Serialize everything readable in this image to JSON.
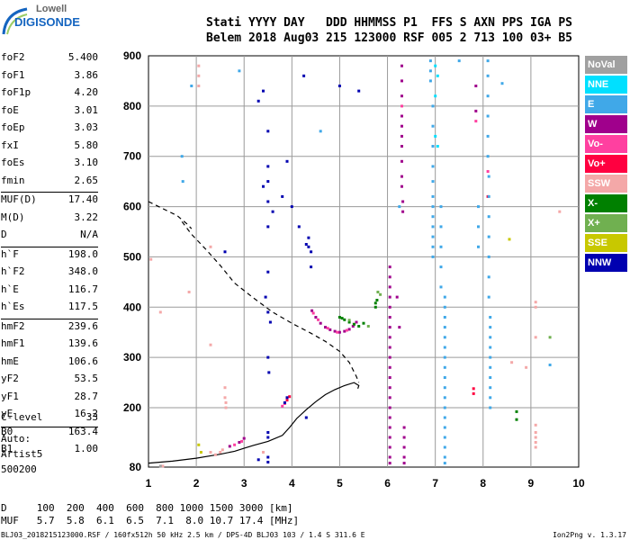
{
  "logo": {
    "top": "Lowell",
    "bottom": "DIGISONDE"
  },
  "header": {
    "line1": "Stati YYYY DAY   DDD HHMMSS P1  FFS S AXN PPS IGA PS",
    "line2": "Belem 2018 Aug03 215 123000 RSF 005 2 713 100 03+ B5"
  },
  "params_top": [
    {
      "label": "foF2",
      "value": "5.400"
    },
    {
      "label": "foF1",
      "value": "3.86"
    },
    {
      "label": "foF1p",
      "value": "4.20"
    },
    {
      "label": "foE",
      "value": "3.01"
    },
    {
      "label": "foEp",
      "value": "3.03"
    },
    {
      "label": "fxI",
      "value": "5.80"
    },
    {
      "label": "foEs",
      "value": "3.10"
    },
    {
      "label": "fmin",
      "value": "2.65"
    }
  ],
  "params_muf": [
    {
      "label": "MUF(D)",
      "value": "17.40"
    },
    {
      "label": "M(D)",
      "value": "3.22"
    },
    {
      "label": "D",
      "value": "N/A"
    }
  ],
  "params_h": [
    {
      "label": "h`F",
      "value": "198.0"
    },
    {
      "label": "h`F2",
      "value": "348.0"
    },
    {
      "label": "h`E",
      "value": "116.7"
    },
    {
      "label": "h`Es",
      "value": "117.5"
    }
  ],
  "params_prof": [
    {
      "label": "hmF2",
      "value": "239.6"
    },
    {
      "label": "hmF1",
      "value": "139.6"
    },
    {
      "label": "hmE",
      "value": "106.6"
    },
    {
      "label": "yF2",
      "value": "53.5"
    },
    {
      "label": "yF1",
      "value": "28.7"
    },
    {
      "label": "yE",
      "value": "16.2"
    },
    {
      "label": "B0",
      "value": "163.4"
    },
    {
      "label": "B1",
      "value": "1.00"
    }
  ],
  "clevel": {
    "label": "C-level",
    "value": "33"
  },
  "artist": {
    "line1": "Auto:",
    "line2": "Artist5",
    "line3": "500200"
  },
  "legend": [
    {
      "label": "NoVal",
      "color": "#a0a0a0"
    },
    {
      "label": "NNE",
      "color": "#00e0ff"
    },
    {
      "label": "E",
      "color": "#40a8e8"
    },
    {
      "label": "W",
      "color": "#a0008c"
    },
    {
      "label": "Vo-",
      "color": "#ff40a0"
    },
    {
      "label": "Vo+",
      "color": "#ff0040"
    },
    {
      "label": "SSW",
      "color": "#f4a8a8"
    },
    {
      "label": "X-",
      "color": "#008000"
    },
    {
      "label": "X+",
      "color": "#70b050"
    },
    {
      "label": "SSE",
      "color": "#c8c800"
    },
    {
      "label": "NNW",
      "color": "#0000b0"
    }
  ],
  "bottom": {
    "d_row": "D     100  200  400  600  800 1000 1500 3000 [km]",
    "muf_row": "MUF   5.7  5.8  6.1  6.5  7.1  8.0 10.7 17.4 [MHz]"
  },
  "footer": "BLJ03_2018215123000.RSF / 160fx512h 50 kHz 2.5 km / DPS-4D BLJ03 103 / 1.4 S 311.6 E",
  "version": "Ion2Png v. 1.3.17",
  "chart_data": {
    "type": "scatter",
    "title": "",
    "xlabel": "",
    "ylabel": "",
    "xlim": [
      1,
      10
    ],
    "ylim": [
      80,
      900
    ],
    "x_ticks": [
      1,
      2,
      3,
      4,
      5,
      6,
      7,
      8,
      9,
      10
    ],
    "y_ticks": [
      80,
      200,
      300,
      400,
      500,
      600,
      700,
      800,
      900
    ],
    "grid": true,
    "legend_position": "right",
    "series": [
      {
        "name": "W",
        "color": "#a0008c",
        "points": [
          [
            4.42,
            393
          ],
          [
            4.5,
            380
          ],
          [
            4.6,
            368
          ],
          [
            4.7,
            360
          ],
          [
            4.8,
            355
          ],
          [
            4.9,
            352
          ],
          [
            5.0,
            350
          ],
          [
            5.1,
            352
          ],
          [
            5.2,
            356
          ],
          [
            5.28,
            362
          ],
          [
            5.35,
            370
          ],
          [
            6.3,
            880
          ],
          [
            6.3,
            850
          ],
          [
            6.3,
            820
          ],
          [
            6.3,
            780
          ],
          [
            6.3,
            760
          ],
          [
            6.3,
            740
          ],
          [
            6.3,
            720
          ],
          [
            6.3,
            690
          ],
          [
            6.3,
            660
          ],
          [
            6.3,
            640
          ],
          [
            6.32,
            610
          ],
          [
            6.32,
            590
          ],
          [
            6.05,
            480
          ],
          [
            6.05,
            460
          ],
          [
            6.05,
            440
          ],
          [
            6.05,
            420
          ],
          [
            6.05,
            400
          ],
          [
            6.05,
            380
          ],
          [
            6.05,
            360
          ],
          [
            6.05,
            340
          ],
          [
            6.05,
            320
          ],
          [
            6.05,
            300
          ],
          [
            6.05,
            280
          ],
          [
            6.05,
            260
          ],
          [
            6.05,
            240
          ],
          [
            6.05,
            220
          ],
          [
            6.05,
            200
          ],
          [
            6.05,
            180
          ],
          [
            6.05,
            160
          ],
          [
            6.05,
            140
          ],
          [
            6.05,
            120
          ],
          [
            6.05,
            100
          ],
          [
            6.05,
            88
          ],
          [
            6.35,
            160
          ],
          [
            6.35,
            140
          ],
          [
            6.35,
            120
          ],
          [
            6.35,
            100
          ],
          [
            6.35,
            88
          ],
          [
            6.2,
            420
          ],
          [
            6.25,
            360
          ],
          [
            2.7,
            122
          ],
          [
            2.9,
            130
          ],
          [
            3.0,
            138
          ],
          [
            7.85,
            840
          ],
          [
            7.85,
            790
          ]
        ]
      },
      {
        "name": "Vo-",
        "color": "#ff40a0",
        "points": [
          [
            4.45,
            388
          ],
          [
            4.55,
            375
          ],
          [
            4.75,
            358
          ],
          [
            4.95,
            350
          ],
          [
            5.15,
            354
          ],
          [
            5.3,
            366
          ],
          [
            3.8,
            203
          ],
          [
            3.85,
            208
          ],
          [
            2.8,
            125
          ],
          [
            2.95,
            132
          ],
          [
            6.3,
            800
          ],
          [
            7.85,
            770
          ],
          [
            8.1,
            670
          ]
        ]
      },
      {
        "name": "Vo+",
        "color": "#ff0040",
        "points": [
          [
            3.9,
            215
          ],
          [
            3.95,
            222
          ],
          [
            7.8,
            238
          ],
          [
            7.8,
            228
          ],
          [
            8.1,
            620
          ]
        ]
      },
      {
        "name": "E",
        "color": "#40a8e8",
        "points": [
          [
            6.9,
            890
          ],
          [
            6.9,
            870
          ],
          [
            6.9,
            850
          ],
          [
            6.95,
            800
          ],
          [
            6.95,
            760
          ],
          [
            6.95,
            720
          ],
          [
            6.95,
            680
          ],
          [
            6.95,
            650
          ],
          [
            6.95,
            620
          ],
          [
            6.95,
            600
          ],
          [
            6.95,
            580
          ],
          [
            6.95,
            560
          ],
          [
            6.95,
            540
          ],
          [
            6.95,
            520
          ],
          [
            6.95,
            500
          ],
          [
            7.2,
            420
          ],
          [
            7.2,
            400
          ],
          [
            7.2,
            380
          ],
          [
            7.2,
            360
          ],
          [
            7.2,
            340
          ],
          [
            7.2,
            320
          ],
          [
            7.2,
            300
          ],
          [
            7.2,
            280
          ],
          [
            7.2,
            260
          ],
          [
            7.2,
            240
          ],
          [
            7.2,
            220
          ],
          [
            7.2,
            200
          ],
          [
            7.2,
            180
          ],
          [
            7.2,
            160
          ],
          [
            7.2,
            140
          ],
          [
            7.2,
            120
          ],
          [
            7.2,
            100
          ],
          [
            7.2,
            88
          ],
          [
            7.12,
            600
          ],
          [
            7.12,
            560
          ],
          [
            7.12,
            520
          ],
          [
            7.12,
            480
          ],
          [
            7.12,
            440
          ],
          [
            8.1,
            890
          ],
          [
            8.1,
            860
          ],
          [
            8.1,
            820
          ],
          [
            8.1,
            780
          ],
          [
            8.1,
            740
          ],
          [
            8.1,
            700
          ],
          [
            8.12,
            660
          ],
          [
            8.12,
            620
          ],
          [
            8.12,
            580
          ],
          [
            8.12,
            540
          ],
          [
            8.12,
            500
          ],
          [
            8.12,
            460
          ],
          [
            8.12,
            420
          ],
          [
            8.15,
            380
          ],
          [
            8.15,
            360
          ],
          [
            8.15,
            340
          ],
          [
            8.15,
            320
          ],
          [
            8.15,
            300
          ],
          [
            8.15,
            280
          ],
          [
            8.15,
            260
          ],
          [
            8.15,
            240
          ],
          [
            8.15,
            220
          ],
          [
            8.15,
            200
          ],
          [
            7.9,
            600
          ],
          [
            7.9,
            560
          ],
          [
            7.9,
            520
          ],
          [
            6.25,
            600
          ],
          [
            1.9,
            840
          ],
          [
            1.7,
            700
          ],
          [
            1.72,
            650
          ],
          [
            7.5,
            890
          ],
          [
            8.4,
            845
          ],
          [
            9.4,
            285
          ],
          [
            2.9,
            870
          ],
          [
            4.6,
            750
          ]
        ]
      },
      {
        "name": "NNE",
        "color": "#00e0ff",
        "points": [
          [
            7.0,
            880
          ],
          [
            7.05,
            860
          ],
          [
            7.0,
            820
          ],
          [
            7.05,
            720
          ],
          [
            7.0,
            740
          ]
        ]
      },
      {
        "name": "NNW",
        "color": "#0000b0",
        "points": [
          [
            3.5,
            750
          ],
          [
            3.5,
            680
          ],
          [
            3.5,
            650
          ],
          [
            3.4,
            640
          ],
          [
            3.5,
            610
          ],
          [
            3.5,
            560
          ],
          [
            3.5,
            470
          ],
          [
            3.45,
            420
          ],
          [
            3.5,
            390
          ],
          [
            3.55,
            370
          ],
          [
            3.5,
            300
          ],
          [
            3.52,
            270
          ],
          [
            3.5,
            150
          ],
          [
            3.5,
            140
          ],
          [
            3.5,
            100
          ],
          [
            3.5,
            90
          ],
          [
            3.3,
            810
          ],
          [
            3.4,
            830
          ],
          [
            3.8,
            620
          ],
          [
            3.9,
            690
          ],
          [
            4.0,
            600
          ],
          [
            4.35,
            538
          ],
          [
            4.35,
            520
          ],
          [
            4.4,
            510
          ],
          [
            4.4,
            480
          ],
          [
            3.9,
            220
          ],
          [
            3.85,
            210
          ],
          [
            4.3,
            180
          ],
          [
            4.15,
            560
          ],
          [
            4.3,
            525
          ],
          [
            5.0,
            840
          ],
          [
            5.4,
            830
          ],
          [
            3.3,
            95
          ],
          [
            2.6,
            510
          ],
          [
            3.6,
            590
          ],
          [
            4.25,
            860
          ]
        ]
      },
      {
        "name": "X-",
        "color": "#008000",
        "points": [
          [
            5.0,
            380
          ],
          [
            5.05,
            378
          ],
          [
            5.1,
            375
          ],
          [
            5.2,
            370
          ],
          [
            5.3,
            366
          ],
          [
            5.4,
            362
          ],
          [
            5.5,
            368
          ],
          [
            5.75,
            408
          ],
          [
            5.78,
            414
          ],
          [
            5.75,
            400
          ],
          [
            8.7,
            192
          ],
          [
            8.7,
            176
          ]
        ]
      },
      {
        "name": "X+",
        "color": "#70b050",
        "points": [
          [
            5.8,
            430
          ],
          [
            5.85,
            425
          ],
          [
            5.6,
            362
          ],
          [
            9.4,
            340
          ],
          [
            5.2,
            374
          ]
        ]
      },
      {
        "name": "SSW",
        "color": "#f4a8a8",
        "points": [
          [
            2.05,
            880
          ],
          [
            2.05,
            860
          ],
          [
            2.05,
            840
          ],
          [
            2.3,
            520
          ],
          [
            1.25,
            390
          ],
          [
            1.85,
            430
          ],
          [
            2.3,
            325
          ],
          [
            2.6,
            240
          ],
          [
            2.6,
            220
          ],
          [
            2.62,
            210
          ],
          [
            2.62,
            200
          ],
          [
            1.05,
            495
          ],
          [
            2.3,
            110
          ],
          [
            2.4,
            105
          ],
          [
            2.5,
            110
          ],
          [
            2.55,
            115
          ],
          [
            3.4,
            110
          ],
          [
            9.1,
            410
          ],
          [
            9.1,
            400
          ],
          [
            9.1,
            340
          ],
          [
            9.1,
            165
          ],
          [
            9.1,
            150
          ],
          [
            9.1,
            140
          ],
          [
            9.1,
            130
          ],
          [
            9.1,
            120
          ],
          [
            8.6,
            290
          ],
          [
            8.9,
            280
          ],
          [
            9.6,
            590
          ],
          [
            1.3,
            82
          ]
        ]
      },
      {
        "name": "SSE",
        "color": "#c8c800",
        "points": [
          [
            2.05,
            125
          ],
          [
            2.1,
            110
          ],
          [
            8.55,
            535
          ]
        ]
      },
      {
        "name": "NoVal",
        "color": "#a0a0a0",
        "points": [
          [
            1.25,
            82
          ]
        ]
      }
    ],
    "profile_solid": [
      [
        1,
        88
      ],
      [
        1.5,
        92
      ],
      [
        2,
        98
      ],
      [
        2.5,
        106
      ],
      [
        2.8,
        112
      ],
      [
        3.0,
        118
      ],
      [
        3.2,
        124
      ],
      [
        3.5,
        132
      ],
      [
        3.8,
        144
      ],
      [
        3.95,
        160
      ],
      [
        4.1,
        178
      ],
      [
        4.3,
        196
      ],
      [
        4.5,
        212
      ],
      [
        4.7,
        226
      ],
      [
        4.9,
        236
      ],
      [
        5.1,
        244
      ],
      [
        5.3,
        250
      ],
      [
        5.4,
        244
      ],
      [
        5.38,
        238
      ]
    ],
    "profile_dashed": [
      [
        1.7,
        570
      ],
      [
        1.9,
        545
      ],
      [
        2.2,
        515
      ],
      [
        2.5,
        483
      ],
      [
        2.8,
        448
      ],
      [
        3.2,
        418
      ],
      [
        3.6,
        390
      ],
      [
        4.0,
        368
      ],
      [
        4.4,
        348
      ],
      [
        4.7,
        332
      ],
      [
        5.0,
        312
      ],
      [
        5.2,
        290
      ],
      [
        5.35,
        262
      ],
      [
        5.4,
        250
      ]
    ],
    "extra_line": [
      [
        1.0,
        610
      ],
      [
        1.3,
        596
      ],
      [
        1.6,
        582
      ],
      [
        1.8,
        566
      ],
      [
        1.9,
        556
      ]
    ]
  }
}
